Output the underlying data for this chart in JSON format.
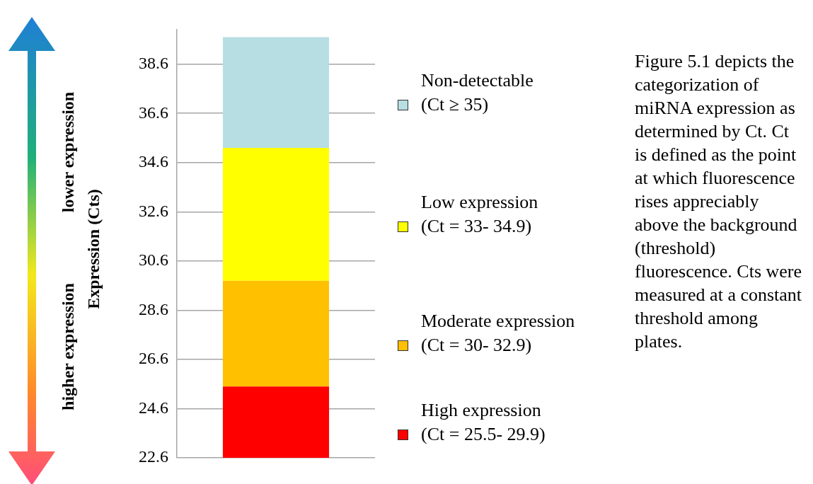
{
  "chart_data": {
    "type": "bar",
    "categories": [
      null
    ],
    "series": [
      {
        "name": "High expression\n(Ct = 25.5- 29.9)",
        "color": "#ff0000",
        "base": [
          22.6
        ],
        "values": [
          2.9
        ]
      },
      {
        "name": "Moderate expression\n(Ct = 30- 32.9)",
        "color": "#ffc000",
        "base": [
          25.5
        ],
        "values": [
          4.3
        ]
      },
      {
        "name": "Low expression\n(Ct = 33- 34.9)",
        "color": "#ffff00",
        "base": [
          29.8
        ],
        "values": [
          5.4
        ]
      },
      {
        "name": "Non-detectable\n(Ct ≥ 35)",
        "color": "#b7dee3",
        "base": [
          35.2
        ],
        "values": [
          4.5
        ]
      }
    ],
    "ylim": [
      22.6,
      40.0
    ],
    "yticks": [
      22.6,
      24.6,
      26.6,
      28.6,
      30.6,
      32.6,
      34.6,
      36.6,
      38.6
    ],
    "grid": "y",
    "legend": "right",
    "ylabel": "Expression (Cts)",
    "annotations": [
      "higher expression",
      "lower expression",
      "Figure 5.1 depicts the categorization of miRNA expression as determined by Ct. Ct is defined as the point at which fluorescence rises appreciably above the background (threshold) fluorescence. Cts were measured at a constant threshold among plates."
    ]
  }
}
